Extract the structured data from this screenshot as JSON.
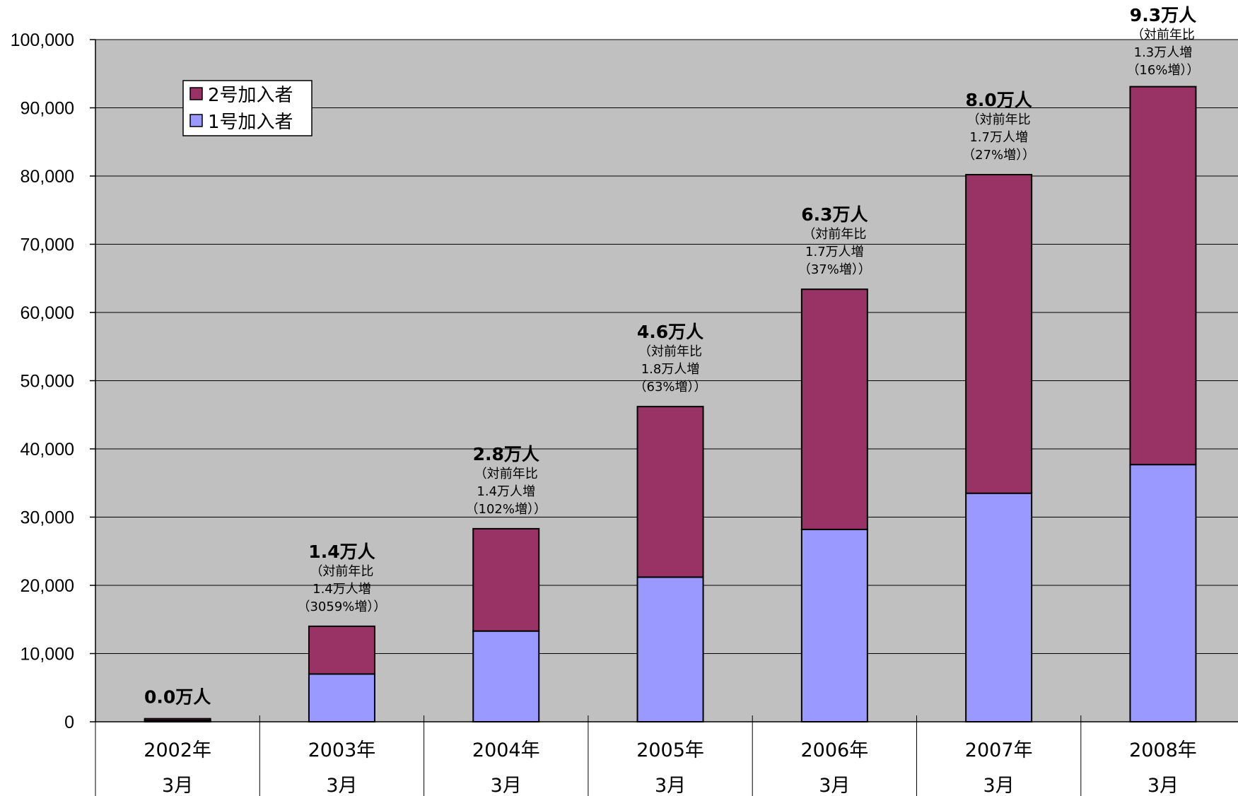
{
  "chart_data": {
    "type": "bar",
    "stacked": true,
    "categories": [
      {
        "year": "2002年",
        "month": "3月"
      },
      {
        "year": "2003年",
        "month": "3月"
      },
      {
        "year": "2004年",
        "month": "3月"
      },
      {
        "year": "2005年",
        "month": "3月"
      },
      {
        "year": "2006年",
        "month": "3月"
      },
      {
        "year": "2007年",
        "month": "3月"
      },
      {
        "year": "2008年",
        "month": "3月"
      }
    ],
    "series": [
      {
        "name": "1号加入者",
        "color": "#9999ff",
        "values": [
          200,
          7000,
          13300,
          21200,
          28200,
          33500,
          37700
        ]
      },
      {
        "name": "2号加入者",
        "color": "#993366",
        "values": [
          250,
          7000,
          15000,
          25000,
          35200,
          46700,
          55400
        ]
      }
    ],
    "ylim": [
      0,
      100000
    ],
    "yticks": [
      "0",
      "10,000",
      "20,000",
      "30,000",
      "40,000",
      "50,000",
      "60,000",
      "70,000",
      "80,000",
      "90,000",
      "100,000"
    ],
    "grid": true,
    "background": "#c0c0c0",
    "legend": {
      "placement": "top-left",
      "order": [
        "2号加入者",
        "1号加入者"
      ]
    },
    "annotations": [
      {
        "total": "0.0万人",
        "lines": []
      },
      {
        "total": "1.4万人",
        "lines": [
          "（対前年比",
          "1.4万人増",
          "（3059%増））"
        ]
      },
      {
        "total": "2.8万人",
        "lines": [
          "（対前年比",
          "1.4万人増",
          "（102%増））"
        ]
      },
      {
        "total": "4.6万人",
        "lines": [
          "（対前年比",
          "1.8万人増",
          "（63%増））"
        ]
      },
      {
        "total": "6.3万人",
        "lines": [
          "（対前年比",
          "1.7万人増",
          "（37%増））"
        ]
      },
      {
        "total": "8.0万人",
        "lines": [
          "（対前年比",
          "1.7万人増",
          "（27%増））"
        ]
      },
      {
        "total": "9.3万人",
        "lines": [
          "（対前年比",
          "1.3万人増",
          "（16%増））"
        ]
      }
    ]
  }
}
